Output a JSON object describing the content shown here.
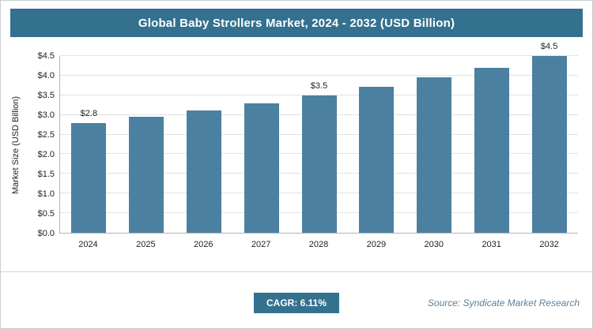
{
  "title": "Global Baby Strollers Market, 2024 - 2032 (USD Billion)",
  "colors": {
    "header_bg": "#34718F",
    "bar": "#4C80A0",
    "badge_bg": "#34718F",
    "grid": "#e2e2e2",
    "axis": "#b5b5b5"
  },
  "chart_data": {
    "type": "bar",
    "categories": [
      "2024",
      "2025",
      "2026",
      "2027",
      "2028",
      "2029",
      "2030",
      "2031",
      "2032"
    ],
    "values": [
      2.8,
      2.95,
      3.12,
      3.3,
      3.5,
      3.72,
      3.95,
      4.2,
      4.5
    ],
    "data_labels": {
      "0": "$2.8",
      "4": "$3.5",
      "8": "$4.5"
    },
    "title": "Global Baby Strollers Market, 2024 - 2032 (USD Billion)",
    "xlabel": "",
    "ylabel": "Market Size (USD Billion)",
    "ylim": [
      0,
      4.5
    ],
    "ytick_step": 0.5,
    "ytick_prefix": "$",
    "grid": true,
    "legend": false
  },
  "footer": {
    "cagr_label": "CAGR: 6.11%",
    "source": "Source: Syndicate Market Research"
  }
}
